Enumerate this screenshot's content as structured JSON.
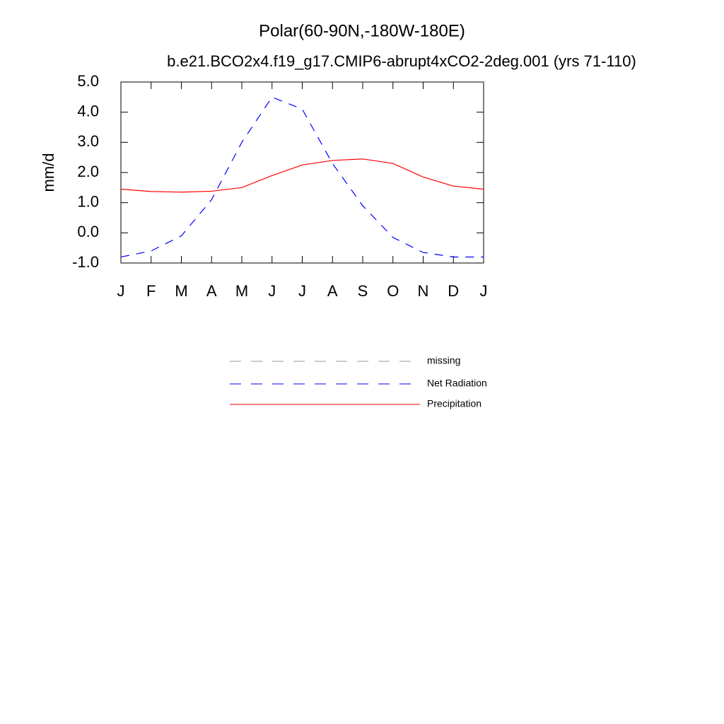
{
  "chart_data": {
    "type": "line",
    "title": "Polar(60-90N,-180W-180E)",
    "subtitle": "b.e21.BCO2x4.f19_g17.CMIP6-abrupt4xCO2-2deg.001 (yrs 71-110)",
    "y_label": "mm/d",
    "categories": [
      "J",
      "F",
      "M",
      "A",
      "M",
      "J",
      "J",
      "A",
      "S",
      "O",
      "N",
      "D",
      "J"
    ],
    "ylim": [
      -1,
      5
    ],
    "yticks": [
      {
        "value": 5,
        "label": "5.0"
      },
      {
        "value": 4,
        "label": "4.0"
      },
      {
        "value": 3,
        "label": "3.0"
      },
      {
        "value": 2,
        "label": "2.0"
      },
      {
        "value": 1,
        "label": "1.0"
      },
      {
        "value": 0,
        "label": "0.0"
      },
      {
        "value": -1,
        "label": "-1.0"
      }
    ],
    "series": [
      {
        "name": "missing",
        "color": "#999999",
        "dashed": true,
        "values": [
          null,
          null,
          null,
          null,
          null,
          null,
          null,
          null,
          null,
          null,
          null,
          null,
          null
        ]
      },
      {
        "name": "Net Radiation",
        "color": "#0000ff",
        "dashed": true,
        "values": [
          -0.8,
          -0.6,
          -0.1,
          1.1,
          3.0,
          4.5,
          4.1,
          2.3,
          0.9,
          -0.15,
          -0.65,
          -0.8,
          -0.8
        ]
      },
      {
        "name": "Precipitation",
        "color": "#ff0000",
        "dashed": false,
        "values": [
          1.45,
          1.37,
          1.35,
          1.38,
          1.5,
          1.9,
          2.25,
          2.4,
          2.45,
          2.3,
          1.85,
          1.55,
          1.45
        ]
      }
    ]
  }
}
